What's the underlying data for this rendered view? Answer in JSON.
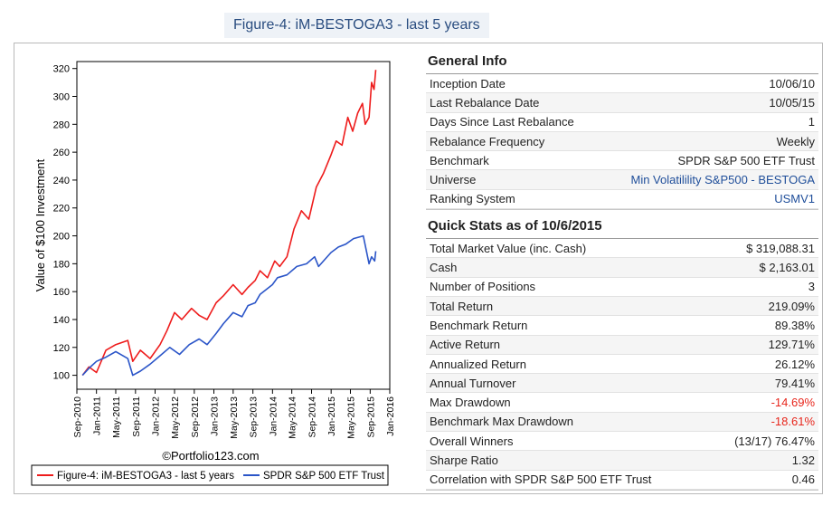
{
  "page_title": "Figure-4: iM-BESTOGA3 - last 5 years",
  "colors": {
    "strategy": "#ee1c1c",
    "benchmark": "#2b55c8",
    "negative": "#e8261c",
    "link": "#1f4e9a"
  },
  "chart_data": {
    "type": "line",
    "ylabel": "Value of $100 Investment",
    "ylim": [
      90,
      325
    ],
    "yticks": [
      100,
      120,
      140,
      160,
      180,
      200,
      220,
      240,
      260,
      280,
      300,
      320
    ],
    "xlim": [
      "2010-09-01",
      "2016-01-01"
    ],
    "xtick_labels": [
      "Sep-2010",
      "Jan-2011",
      "May-2011",
      "Sep-2011",
      "Jan-2012",
      "May-2012",
      "Sep-2012",
      "Jan-2013",
      "May-2013",
      "Sep-2013",
      "Jan-2014",
      "May-2014",
      "Sep-2014",
      "Jan-2015",
      "May-2015",
      "Sep-2015",
      "Jan-2016"
    ],
    "xtick_dates": [
      "2010-09-01",
      "2011-01-01",
      "2011-05-01",
      "2011-09-01",
      "2012-01-01",
      "2012-05-01",
      "2012-09-01",
      "2013-01-01",
      "2013-05-01",
      "2013-09-01",
      "2014-01-01",
      "2014-05-01",
      "2014-09-01",
      "2015-01-01",
      "2015-05-01",
      "2015-09-01",
      "2016-01-01"
    ],
    "watermark": "©Portfolio123.com",
    "series": [
      {
        "name": "Figure-4: iM-BESTOGA3 - last 5 years",
        "x": [
          "2010-10-06",
          "2010-11-15",
          "2011-01-01",
          "2011-03-01",
          "2011-05-01",
          "2011-07-15",
          "2011-08-15",
          "2011-10-01",
          "2011-12-01",
          "2012-02-01",
          "2012-03-15",
          "2012-05-01",
          "2012-06-15",
          "2012-08-15",
          "2012-10-01",
          "2012-11-20",
          "2013-01-15",
          "2013-03-01",
          "2013-05-01",
          "2013-06-25",
          "2013-08-01",
          "2013-09-15",
          "2013-10-15",
          "2013-12-01",
          "2014-01-15",
          "2014-02-15",
          "2014-04-01",
          "2014-05-15",
          "2014-06-30",
          "2014-08-15",
          "2014-10-01",
          "2014-11-15",
          "2014-12-31",
          "2015-02-01",
          "2015-03-10",
          "2015-04-15",
          "2015-05-15",
          "2015-06-15",
          "2015-07-15",
          "2015-08-01",
          "2015-08-25",
          "2015-09-10",
          "2015-09-25",
          "2015-10-06"
        ],
        "y": [
          100,
          106,
          102,
          118,
          122,
          125,
          110,
          118,
          112,
          122,
          132,
          145,
          140,
          148,
          143,
          140,
          152,
          157,
          165,
          158,
          163,
          168,
          175,
          170,
          182,
          178,
          185,
          205,
          218,
          212,
          235,
          245,
          258,
          268,
          265,
          285,
          275,
          288,
          295,
          280,
          285,
          310,
          305,
          319
        ]
      },
      {
        "name": "SPDR S&P 500 ETF Trust",
        "x": [
          "2010-10-06",
          "2010-11-15",
          "2011-01-01",
          "2011-03-01",
          "2011-05-01",
          "2011-07-15",
          "2011-08-15",
          "2011-10-01",
          "2011-12-01",
          "2012-02-01",
          "2012-04-01",
          "2012-06-01",
          "2012-08-01",
          "2012-10-01",
          "2012-11-20",
          "2013-01-15",
          "2013-03-01",
          "2013-05-01",
          "2013-06-25",
          "2013-08-01",
          "2013-09-15",
          "2013-10-15",
          "2013-12-31",
          "2014-02-01",
          "2014-04-01",
          "2014-06-01",
          "2014-08-01",
          "2014-09-20",
          "2014-10-15",
          "2014-12-31",
          "2015-02-15",
          "2015-04-01",
          "2015-05-20",
          "2015-07-20",
          "2015-08-25",
          "2015-09-10",
          "2015-09-29",
          "2015-10-06"
        ],
        "y": [
          100,
          105,
          110,
          113,
          117,
          112,
          100,
          103,
          108,
          114,
          120,
          115,
          122,
          126,
          122,
          130,
          137,
          145,
          142,
          150,
          152,
          158,
          165,
          170,
          172,
          178,
          180,
          185,
          178,
          188,
          192,
          194,
          198,
          200,
          180,
          185,
          182,
          189
        ]
      }
    ]
  },
  "general_info": {
    "title": "General Info",
    "rows": [
      {
        "label": "Inception Date",
        "value": "10/06/10"
      },
      {
        "label": "Last Rebalance Date",
        "value": "10/05/15"
      },
      {
        "label": "Days Since Last Rebalance",
        "value": "1"
      },
      {
        "label": "Rebalance Frequency",
        "value": "Weekly"
      },
      {
        "label": "Benchmark",
        "value": "SPDR S&P 500 ETF Trust"
      },
      {
        "label": "Universe",
        "value": "Min Volatilility S&P500 - BESTOGA"
      },
      {
        "label": "Ranking System",
        "value": "USMV1"
      }
    ]
  },
  "quick_stats": {
    "title": "Quick Stats as of 10/6/2015",
    "rows": [
      {
        "label": "Total Market Value (inc. Cash)",
        "value": "$ 319,088.31"
      },
      {
        "label": "Cash",
        "value": "$ 2,163.01"
      },
      {
        "label": "Number of Positions",
        "value": "3"
      },
      {
        "label": "Total Return",
        "value": "219.09%"
      },
      {
        "label": "Benchmark Return",
        "value": "89.38%"
      },
      {
        "label": "Active Return",
        "value": "129.71%"
      },
      {
        "label": "Annualized Return",
        "value": "26.12%"
      },
      {
        "label": "Annual Turnover",
        "value": "79.41%"
      },
      {
        "label": "Max Drawdown",
        "value": "-14.69%"
      },
      {
        "label": "Benchmark Max Drawdown",
        "value": "-18.61%"
      },
      {
        "label": "Overall Winners",
        "value": "(13/17) 76.47%"
      },
      {
        "label": "Sharpe Ratio",
        "value": "1.32"
      },
      {
        "label": "Correlation with SPDR S&P 500 ETF Trust",
        "value": "0.46"
      }
    ]
  }
}
